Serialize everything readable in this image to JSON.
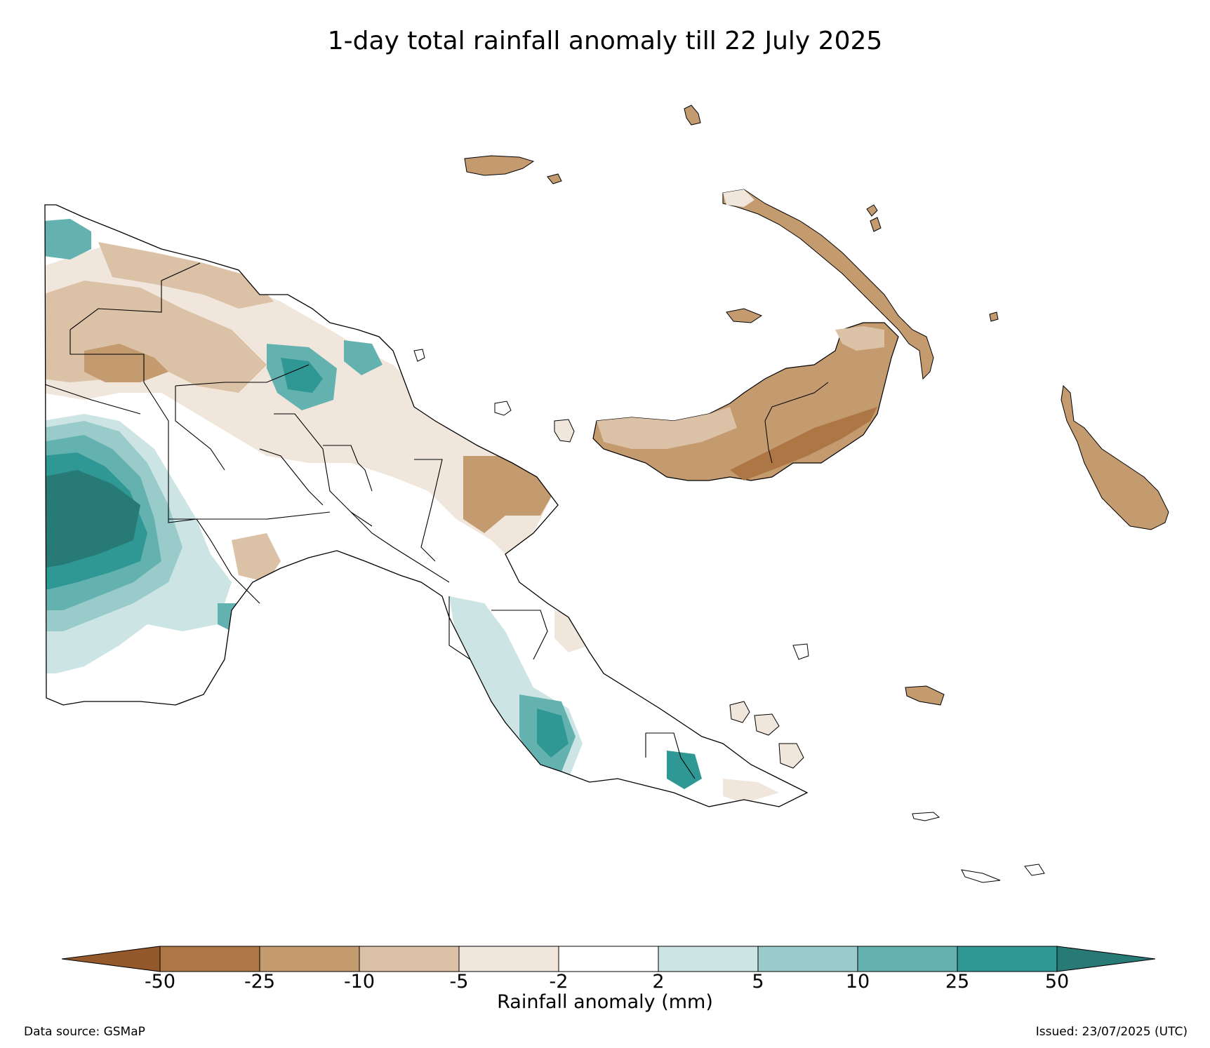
{
  "title": "1-day total rainfall anomaly till 22 July 2025",
  "colorbar": {
    "label": "Rainfall anomaly (mm)",
    "ticks": [
      "-50",
      "-25",
      "-10",
      "-5",
      "-2",
      "2",
      "5",
      "10",
      "25",
      "50"
    ],
    "colors": [
      "#94582a",
      "#ad7745",
      "#c49a6f",
      "#dbc1a5",
      "#f1e6dc",
      "#ffffff",
      "#cce5e4",
      "#98cbca",
      "#63b2b0",
      "#2f9894",
      "#277a76"
    ],
    "extend": "both"
  },
  "footer": {
    "source": "Data source: GSMaP",
    "issued": "Issued: 23/07/2025 (UTC)"
  },
  "legend_bins": [
    {
      "range": "< -50",
      "color": "#94582a"
    },
    {
      "range": "-50 to -25",
      "color": "#ad7745"
    },
    {
      "range": "-25 to -10",
      "color": "#c49a6f"
    },
    {
      "range": "-10 to -5",
      "color": "#dbc1a5"
    },
    {
      "range": "-5 to -2",
      "color": "#f1e6dc"
    },
    {
      "range": "-2 to 2",
      "color": "#ffffff"
    },
    {
      "range": "2 to 5",
      "color": "#cce5e4"
    },
    {
      "range": "5 to 10",
      "color": "#98cbca"
    },
    {
      "range": "10 to 25",
      "color": "#63b2b0"
    },
    {
      "range": "25 to 50",
      "color": "#2f9894"
    },
    {
      "range": "> 50",
      "color": "#277a76"
    }
  ]
}
